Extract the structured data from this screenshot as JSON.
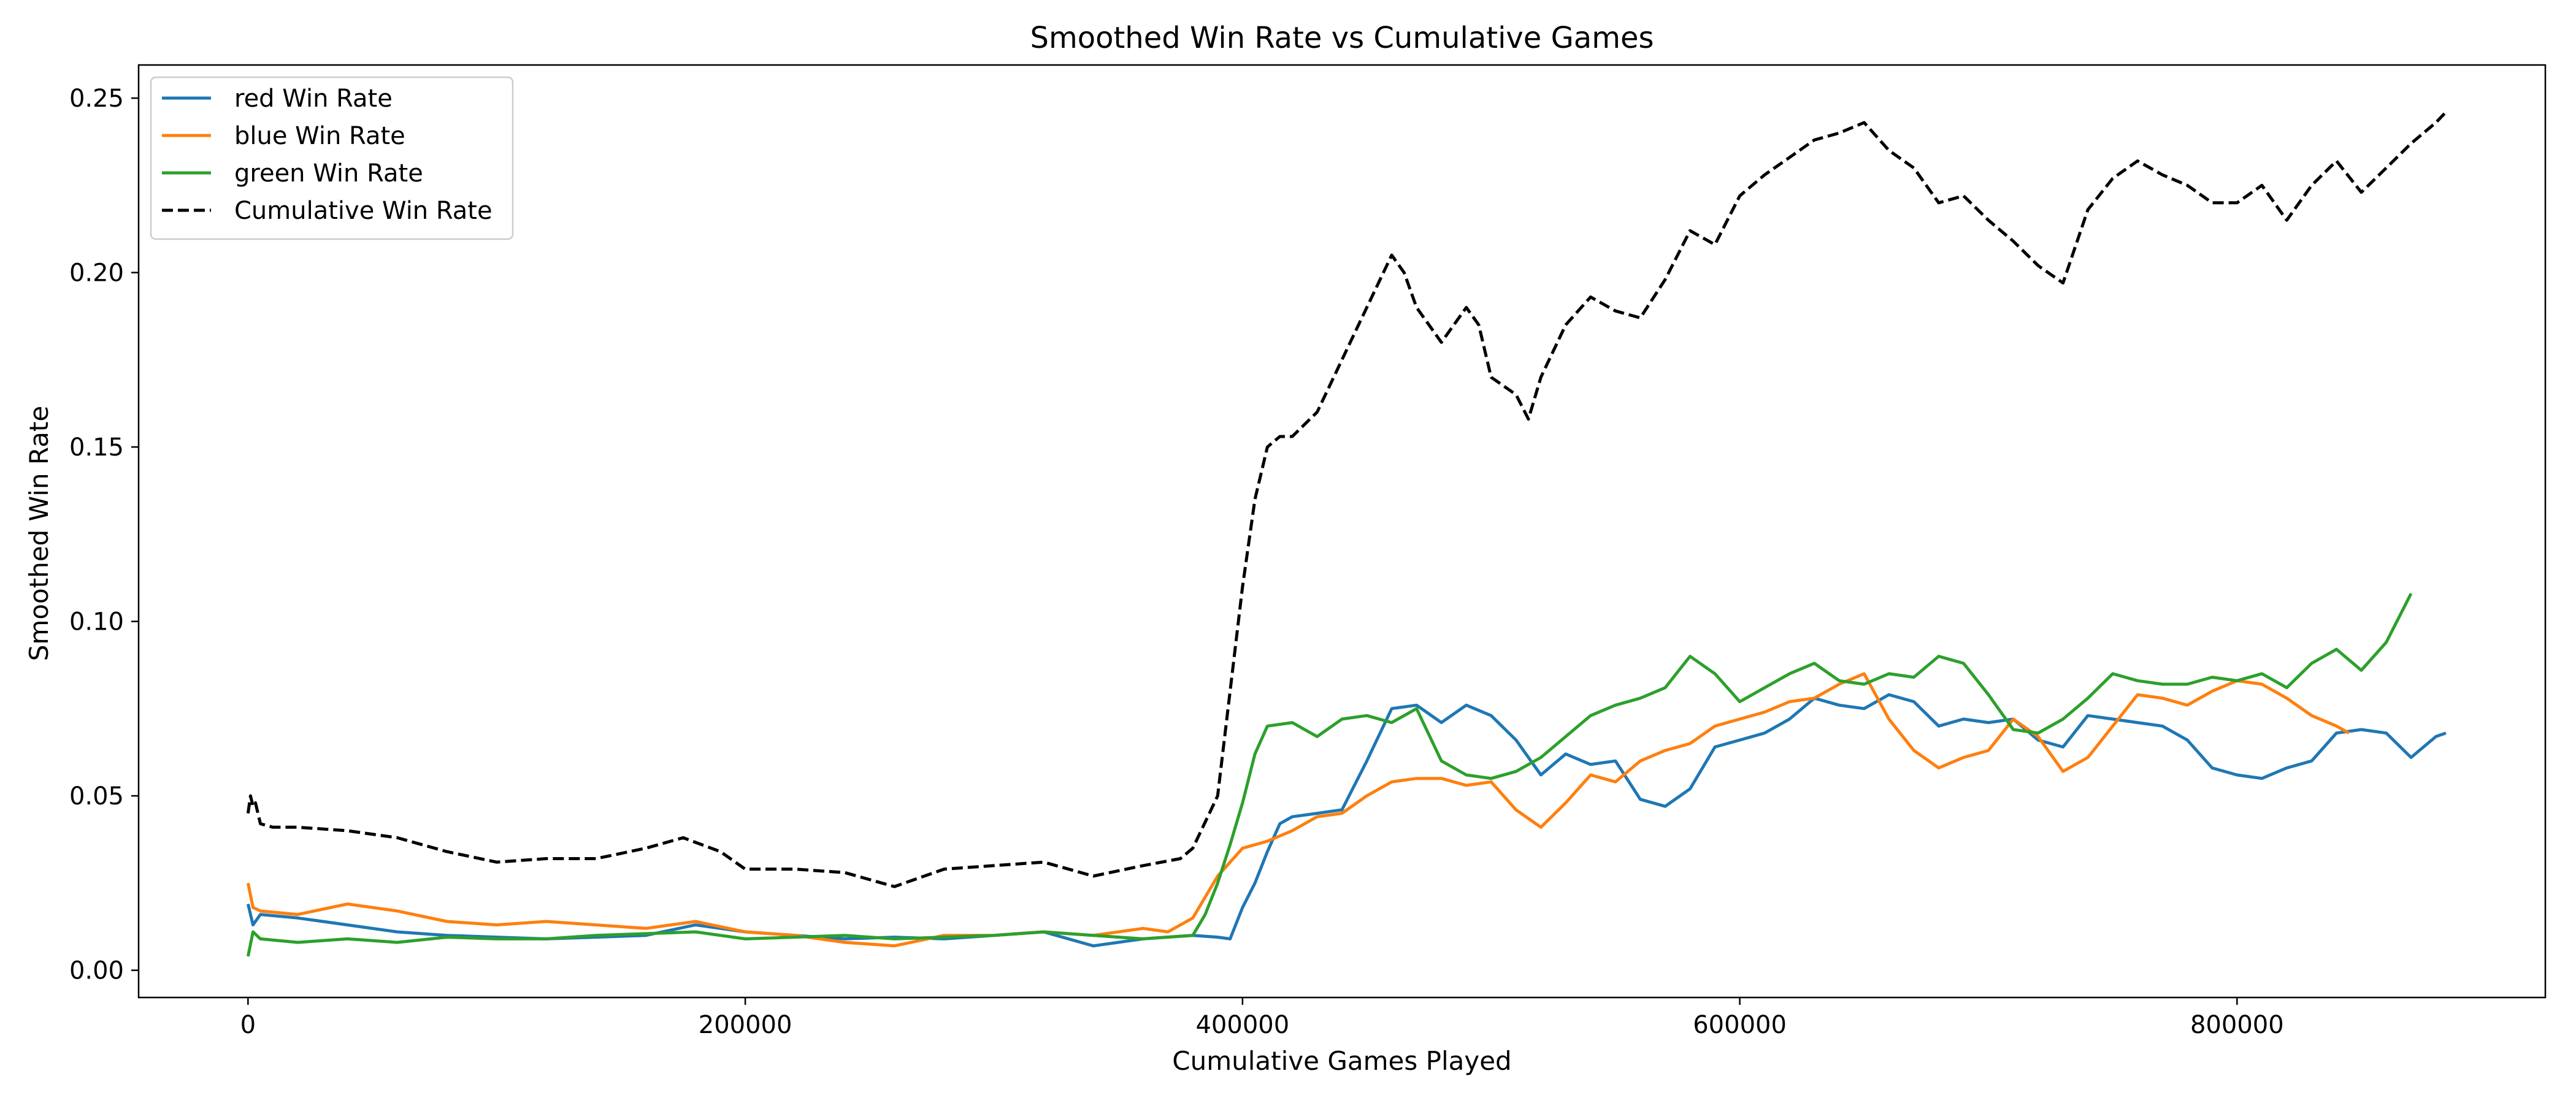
{
  "chart_data": {
    "type": "line",
    "title": "Smoothed Win Rate vs Cumulative Games",
    "xlabel": "Cumulative Games Played",
    "ylabel": "Smoothed Win Rate",
    "xlim": [
      -44000,
      924000
    ],
    "ylim": [
      -0.0078,
      0.2595
    ],
    "xticks": [
      {
        "value": 0,
        "label": "0"
      },
      {
        "value": 200000,
        "label": "200000"
      },
      {
        "value": 400000,
        "label": "400000"
      },
      {
        "value": 600000,
        "label": "600000"
      },
      {
        "value": 800000,
        "label": "800000"
      }
    ],
    "yticks": [
      {
        "value": 0.0,
        "label": "0.00"
      },
      {
        "value": 0.05,
        "label": "0.05"
      },
      {
        "value": 0.1,
        "label": "0.10"
      },
      {
        "value": 0.15,
        "label": "0.15"
      },
      {
        "value": 0.2,
        "label": "0.20"
      },
      {
        "value": 0.25,
        "label": "0.25"
      }
    ],
    "grid": false,
    "legend_position": "top-left",
    "series": [
      {
        "name": "red Win Rate",
        "color": "#1f77b4",
        "style": "solid",
        "x": [
          0,
          2000,
          5000,
          20000,
          40000,
          60000,
          80000,
          100000,
          120000,
          140000,
          160000,
          180000,
          200000,
          220000,
          240000,
          260000,
          280000,
          300000,
          320000,
          340000,
          360000,
          380000,
          390000,
          395000,
          400000,
          405000,
          410000,
          415000,
          420000,
          430000,
          440000,
          450000,
          460000,
          470000,
          480000,
          490000,
          500000,
          510000,
          520000,
          530000,
          540000,
          550000,
          560000,
          570000,
          580000,
          590000,
          600000,
          610000,
          620000,
          630000,
          640000,
          650000,
          660000,
          670000,
          680000,
          690000,
          700000,
          710000,
          720000,
          730000,
          740000,
          750000,
          760000,
          770000,
          780000,
          790000,
          800000,
          810000,
          820000,
          830000,
          840000,
          850000,
          860000,
          870000,
          880000,
          884000
        ],
        "y": [
          0.019,
          0.013,
          0.016,
          0.015,
          0.013,
          0.011,
          0.01,
          0.0095,
          0.009,
          0.0095,
          0.01,
          0.013,
          0.011,
          0.01,
          0.009,
          0.0095,
          0.009,
          0.01,
          0.011,
          0.007,
          0.009,
          0.01,
          0.0095,
          0.009,
          0.018,
          0.025,
          0.034,
          0.042,
          0.044,
          0.045,
          0.046,
          0.06,
          0.075,
          0.076,
          0.071,
          0.076,
          0.073,
          0.066,
          0.056,
          0.062,
          0.059,
          0.06,
          0.049,
          0.047,
          0.052,
          0.064,
          0.066,
          0.068,
          0.072,
          0.078,
          0.076,
          0.075,
          0.079,
          0.077,
          0.07,
          0.072,
          0.071,
          0.072,
          0.066,
          0.064,
          0.073,
          0.072,
          0.071,
          0.07,
          0.066,
          0.058,
          0.056,
          0.055,
          0.058,
          0.06,
          0.068,
          0.069,
          0.068,
          0.061,
          0.067,
          0.068
        ]
      },
      {
        "name": "blue Win Rate",
        "color": "#ff7f0e",
        "style": "solid",
        "x": [
          0,
          2000,
          5000,
          20000,
          40000,
          60000,
          80000,
          100000,
          120000,
          140000,
          160000,
          180000,
          200000,
          220000,
          240000,
          260000,
          280000,
          300000,
          320000,
          340000,
          360000,
          370000,
          380000,
          390000,
          400000,
          410000,
          420000,
          430000,
          440000,
          450000,
          460000,
          470000,
          480000,
          490000,
          500000,
          510000,
          520000,
          530000,
          540000,
          550000,
          560000,
          570000,
          580000,
          590000,
          600000,
          610000,
          620000,
          630000,
          640000,
          650000,
          660000,
          670000,
          680000,
          690000,
          700000,
          710000,
          720000,
          730000,
          740000,
          750000,
          760000,
          770000,
          780000,
          790000,
          800000,
          810000,
          820000,
          830000,
          840000,
          845000
        ],
        "y": [
          0.025,
          0.018,
          0.017,
          0.016,
          0.019,
          0.017,
          0.014,
          0.013,
          0.014,
          0.013,
          0.012,
          0.014,
          0.011,
          0.01,
          0.008,
          0.007,
          0.01,
          0.01,
          0.011,
          0.01,
          0.012,
          0.011,
          0.015,
          0.027,
          0.035,
          0.037,
          0.04,
          0.044,
          0.045,
          0.05,
          0.054,
          0.055,
          0.055,
          0.053,
          0.054,
          0.046,
          0.041,
          0.048,
          0.056,
          0.054,
          0.06,
          0.063,
          0.065,
          0.07,
          0.072,
          0.074,
          0.077,
          0.078,
          0.082,
          0.085,
          0.072,
          0.063,
          0.058,
          0.061,
          0.063,
          0.072,
          0.067,
          0.057,
          0.061,
          0.07,
          0.079,
          0.078,
          0.076,
          0.08,
          0.083,
          0.082,
          0.078,
          0.073,
          0.07,
          0.068
        ]
      },
      {
        "name": "green Win Rate",
        "color": "#2ca02c",
        "style": "solid",
        "x": [
          0,
          2000,
          5000,
          20000,
          40000,
          60000,
          80000,
          100000,
          120000,
          140000,
          160000,
          180000,
          200000,
          220000,
          240000,
          260000,
          280000,
          300000,
          320000,
          340000,
          360000,
          380000,
          385000,
          390000,
          395000,
          400000,
          405000,
          410000,
          420000,
          430000,
          440000,
          450000,
          460000,
          470000,
          480000,
          490000,
          500000,
          510000,
          520000,
          530000,
          540000,
          550000,
          560000,
          570000,
          580000,
          590000,
          600000,
          610000,
          620000,
          630000,
          640000,
          650000,
          660000,
          670000,
          680000,
          690000,
          700000,
          710000,
          720000,
          730000,
          740000,
          750000,
          760000,
          770000,
          780000,
          790000,
          800000,
          810000,
          820000,
          830000,
          840000,
          850000,
          860000,
          870000
        ],
        "y": [
          0.004,
          0.011,
          0.009,
          0.008,
          0.009,
          0.008,
          0.0095,
          0.009,
          0.009,
          0.01,
          0.0105,
          0.011,
          0.009,
          0.0095,
          0.01,
          0.009,
          0.0095,
          0.01,
          0.011,
          0.01,
          0.009,
          0.01,
          0.016,
          0.025,
          0.036,
          0.048,
          0.062,
          0.07,
          0.071,
          0.067,
          0.072,
          0.073,
          0.071,
          0.075,
          0.06,
          0.056,
          0.055,
          0.057,
          0.061,
          0.067,
          0.073,
          0.076,
          0.078,
          0.081,
          0.09,
          0.085,
          0.077,
          0.081,
          0.085,
          0.088,
          0.083,
          0.082,
          0.085,
          0.084,
          0.09,
          0.088,
          0.079,
          0.069,
          0.068,
          0.072,
          0.078,
          0.085,
          0.083,
          0.082,
          0.082,
          0.084,
          0.083,
          0.085,
          0.081,
          0.088,
          0.092,
          0.086,
          0.094,
          0.108
        ]
      },
      {
        "name": "Cumulative Win Rate",
        "color": "#000000",
        "style": "dashed",
        "x": [
          0,
          1000,
          2000,
          3000,
          5000,
          10000,
          20000,
          40000,
          60000,
          80000,
          100000,
          120000,
          140000,
          160000,
          175000,
          190000,
          200000,
          220000,
          240000,
          260000,
          280000,
          300000,
          320000,
          340000,
          360000,
          375000,
          380000,
          390000,
          395000,
          400000,
          405000,
          410000,
          415000,
          420000,
          430000,
          440000,
          450000,
          460000,
          465000,
          470000,
          480000,
          490000,
          495000,
          500000,
          510000,
          515000,
          520000,
          530000,
          540000,
          550000,
          560000,
          570000,
          580000,
          590000,
          600000,
          610000,
          620000,
          630000,
          640000,
          650000,
          660000,
          670000,
          680000,
          690000,
          700000,
          710000,
          720000,
          730000,
          740000,
          750000,
          760000,
          770000,
          780000,
          790000,
          800000,
          810000,
          820000,
          830000,
          840000,
          850000,
          860000,
          870000,
          880000,
          884000
        ],
        "y": [
          0.045,
          0.05,
          0.047,
          0.048,
          0.042,
          0.041,
          0.041,
          0.04,
          0.038,
          0.034,
          0.031,
          0.032,
          0.032,
          0.035,
          0.038,
          0.034,
          0.029,
          0.029,
          0.028,
          0.024,
          0.029,
          0.03,
          0.031,
          0.027,
          0.03,
          0.032,
          0.035,
          0.05,
          0.08,
          0.11,
          0.135,
          0.15,
          0.153,
          0.153,
          0.16,
          0.175,
          0.19,
          0.205,
          0.2,
          0.19,
          0.18,
          0.19,
          0.185,
          0.17,
          0.165,
          0.158,
          0.17,
          0.185,
          0.193,
          0.189,
          0.187,
          0.198,
          0.212,
          0.208,
          0.222,
          0.228,
          0.233,
          0.238,
          0.24,
          0.243,
          0.235,
          0.23,
          0.22,
          0.222,
          0.215,
          0.209,
          0.202,
          0.197,
          0.218,
          0.227,
          0.232,
          0.228,
          0.225,
          0.22,
          0.22,
          0.225,
          0.215,
          0.225,
          0.232,
          0.223,
          0.23,
          0.237,
          0.243,
          0.246
        ]
      }
    ]
  }
}
